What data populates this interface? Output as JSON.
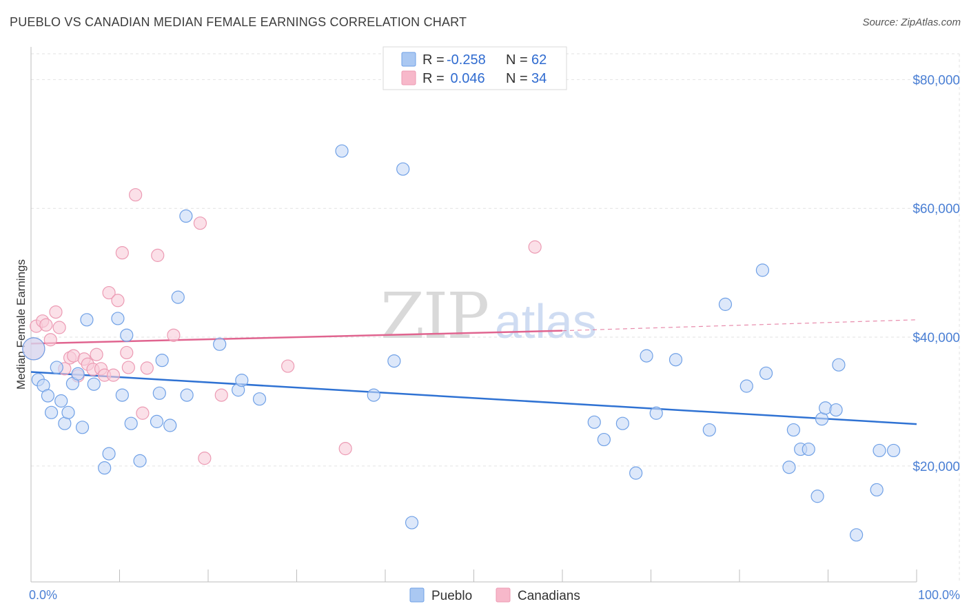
{
  "title": "PUEBLO VS CANADIAN MEDIAN FEMALE EARNINGS CORRELATION CHART",
  "source": "Source: ZipAtlas.com",
  "watermark": {
    "part1": "ZIP",
    "part2": "atlas"
  },
  "legend_top": [
    {
      "r_label": "R =",
      "r_value": "-0.258",
      "n_label": "N =",
      "n_value": "62",
      "color": "#aac8f2"
    },
    {
      "r_label": "R =",
      "r_value": " 0.046",
      "n_label": "N =",
      "n_value": "34",
      "color": "#f7b8ca"
    }
  ],
  "legend_bottom": [
    {
      "label": "Pueblo",
      "color": "#aac8f2"
    },
    {
      "label": "Canadians",
      "color": "#f7b8ca"
    }
  ],
  "chart_data": {
    "type": "scatter",
    "title": "PUEBLO VS CANADIAN MEDIAN FEMALE EARNINGS CORRELATION CHART",
    "xlabel": "",
    "ylabel": "Median Female Earnings",
    "xlim": [
      0,
      100
    ],
    "ylim": [
      2000,
      84000
    ],
    "x_tick_labels": [
      "0.0%",
      "100.0%"
    ],
    "y_ticks": [
      20000,
      40000,
      60000,
      80000
    ],
    "y_tick_labels": [
      "$20,000",
      "$40,000",
      "$60,000",
      "$80,000"
    ],
    "grid": "horizontal dashed",
    "legend_position": "top-center",
    "series": [
      {
        "name": "Pueblo",
        "color": "#6fa0e6",
        "fill": "#c6d9f6",
        "trend": {
          "x": [
            0,
            100
          ],
          "y": [
            34600,
            26500
          ],
          "color": "#2f72d3"
        },
        "points": [
          [
            0.3,
            38200
          ],
          [
            0.8,
            33400
          ],
          [
            1.4,
            32500
          ],
          [
            1.9,
            30900
          ],
          [
            2.3,
            28300
          ],
          [
            2.9,
            35300
          ],
          [
            3.4,
            30100
          ],
          [
            3.8,
            26600
          ],
          [
            4.2,
            28300
          ],
          [
            4.7,
            32800
          ],
          [
            5.3,
            34300
          ],
          [
            5.8,
            26000
          ],
          [
            6.3,
            42700
          ],
          [
            7.1,
            32700
          ],
          [
            8.3,
            19700
          ],
          [
            8.8,
            21900
          ],
          [
            9.8,
            42900
          ],
          [
            10.3,
            31000
          ],
          [
            10.8,
            40300
          ],
          [
            11.3,
            26600
          ],
          [
            12.3,
            20800
          ],
          [
            14.2,
            26900
          ],
          [
            14.5,
            31300
          ],
          [
            14.8,
            36400
          ],
          [
            15.7,
            26300
          ],
          [
            16.6,
            46200
          ],
          [
            17.5,
            58800
          ],
          [
            17.6,
            31000
          ],
          [
            21.3,
            38900
          ],
          [
            23.4,
            31800
          ],
          [
            23.8,
            33300
          ],
          [
            25.8,
            30400
          ],
          [
            35.1,
            68900
          ],
          [
            38.7,
            31000
          ],
          [
            41.0,
            36300
          ],
          [
            42.0,
            66100
          ],
          [
            43.0,
            11200
          ],
          [
            63.6,
            26800
          ],
          [
            64.7,
            24100
          ],
          [
            66.8,
            26600
          ],
          [
            68.3,
            18900
          ],
          [
            69.5,
            37100
          ],
          [
            70.6,
            28200
          ],
          [
            72.8,
            36500
          ],
          [
            76.6,
            25600
          ],
          [
            78.4,
            45100
          ],
          [
            80.8,
            32400
          ],
          [
            82.6,
            50400
          ],
          [
            83.0,
            34400
          ],
          [
            85.6,
            19800
          ],
          [
            86.1,
            25600
          ],
          [
            86.9,
            22600
          ],
          [
            87.8,
            22600
          ],
          [
            88.8,
            15300
          ],
          [
            89.3,
            27300
          ],
          [
            89.7,
            29000
          ],
          [
            90.9,
            28700
          ],
          [
            91.2,
            35700
          ],
          [
            93.2,
            9300
          ],
          [
            95.5,
            16300
          ],
          [
            95.8,
            22400
          ],
          [
            97.4,
            22400
          ]
        ]
      },
      {
        "name": "Canadians",
        "color": "#ec9ab3",
        "fill": "#f9ccd9",
        "trend": {
          "x": [
            0,
            60
          ],
          "y": [
            39000,
            41000
          ],
          "dashed_to": {
            "x": 100,
            "y": 42700
          },
          "color": "#e0648f"
        },
        "points": [
          [
            0.3,
            38200
          ],
          [
            0.6,
            41700
          ],
          [
            1.3,
            42500
          ],
          [
            1.7,
            41900
          ],
          [
            2.2,
            39600
          ],
          [
            2.8,
            43900
          ],
          [
            3.2,
            41500
          ],
          [
            3.8,
            35100
          ],
          [
            4.4,
            36800
          ],
          [
            4.8,
            37100
          ],
          [
            5.3,
            34000
          ],
          [
            6.0,
            36600
          ],
          [
            6.4,
            35800
          ],
          [
            7.0,
            35000
          ],
          [
            7.4,
            37300
          ],
          [
            7.9,
            35100
          ],
          [
            8.3,
            34100
          ],
          [
            8.8,
            46900
          ],
          [
            9.3,
            34100
          ],
          [
            9.8,
            45700
          ],
          [
            10.3,
            53100
          ],
          [
            10.8,
            37600
          ],
          [
            11.0,
            35300
          ],
          [
            11.8,
            62100
          ],
          [
            12.6,
            28200
          ],
          [
            13.1,
            35200
          ],
          [
            14.3,
            52700
          ],
          [
            16.1,
            40300
          ],
          [
            19.1,
            57700
          ],
          [
            19.6,
            21200
          ],
          [
            21.5,
            31000
          ],
          [
            29.0,
            35500
          ],
          [
            35.5,
            22700
          ],
          [
            56.9,
            54000
          ]
        ]
      }
    ]
  }
}
